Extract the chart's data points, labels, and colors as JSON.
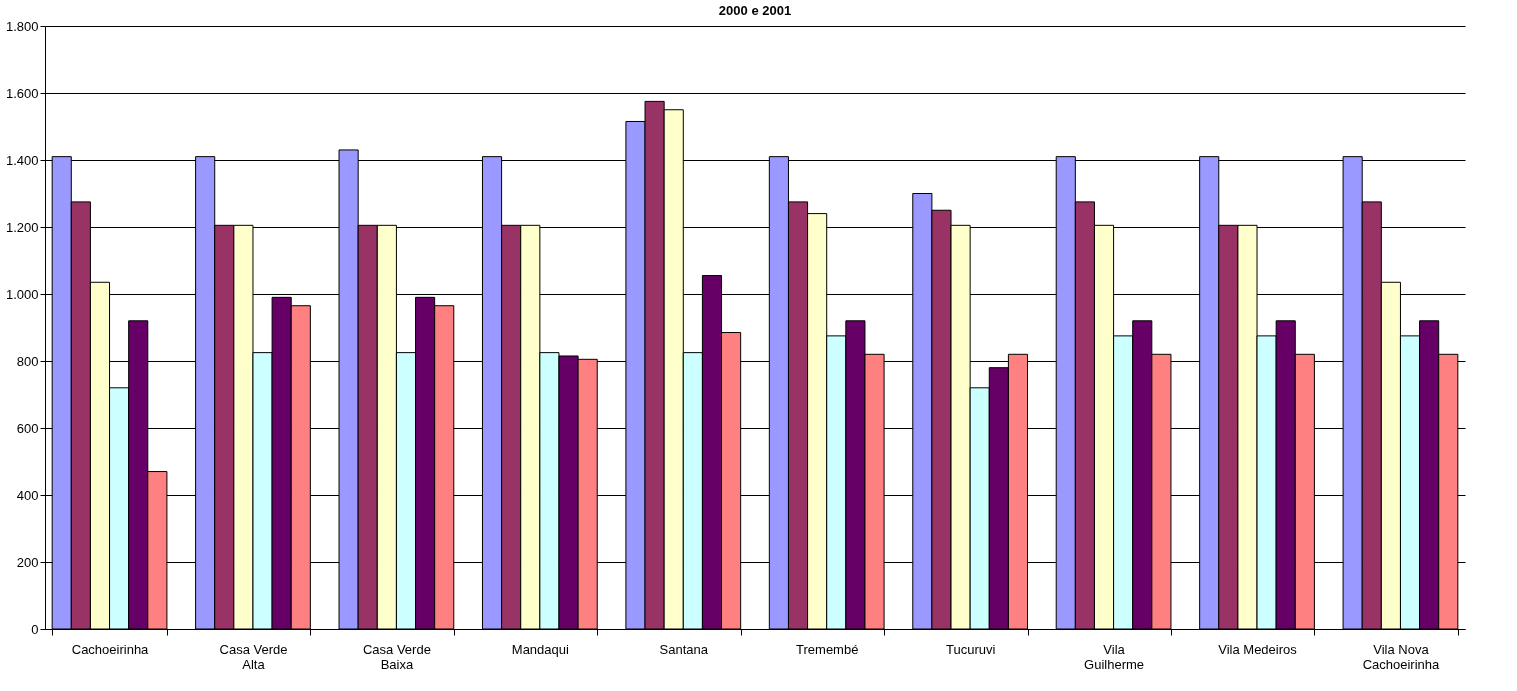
{
  "chart_data": {
    "type": "bar",
    "title": "2000 e 2001",
    "categories": [
      "Cachoeirinha",
      "Casa Verde Alta",
      "Casa Verde Baixa",
      "Mandaqui",
      "Santana",
      "Tremembé",
      "Tucuruvi",
      "Vila Guilherme",
      "Vila Medeiros",
      "Vila Nova Cachoeirinha"
    ],
    "series": [
      {
        "color": "#9999ff",
        "values": [
          1410,
          1410,
          1430,
          1410,
          1515,
          1410,
          1300,
          1410,
          1410,
          1410
        ]
      },
      {
        "color": "#993366",
        "values": [
          1275,
          1205,
          1205,
          1205,
          1575,
          1275,
          1250,
          1275,
          1205,
          1275
        ]
      },
      {
        "color": "#ffffcc",
        "values": [
          1035,
          1205,
          1205,
          1205,
          1550,
          1240,
          1205,
          1205,
          1205,
          1035
        ]
      },
      {
        "color": "#ccffff",
        "values": [
          720,
          825,
          825,
          825,
          825,
          875,
          720,
          875,
          875,
          875
        ]
      },
      {
        "color": "#660066",
        "values": [
          920,
          990,
          990,
          815,
          1055,
          920,
          780,
          920,
          920,
          920
        ]
      },
      {
        "color": "#ff8080",
        "values": [
          470,
          965,
          965,
          805,
          885,
          820,
          820,
          820,
          820,
          820
        ]
      }
    ],
    "ylim": [
      0,
      1800
    ],
    "yticks": [
      0,
      200,
      400,
      600,
      800,
      {
        "value": 1000,
        "label": "1.000"
      },
      {
        "value": 1200,
        "label": "1.200"
      },
      {
        "value": 1400,
        "label": "1.400"
      },
      {
        "value": 1600,
        "label": "1.600"
      },
      {
        "value": 1800,
        "label": "1.800"
      }
    ],
    "grid": "y",
    "legend": false
  }
}
